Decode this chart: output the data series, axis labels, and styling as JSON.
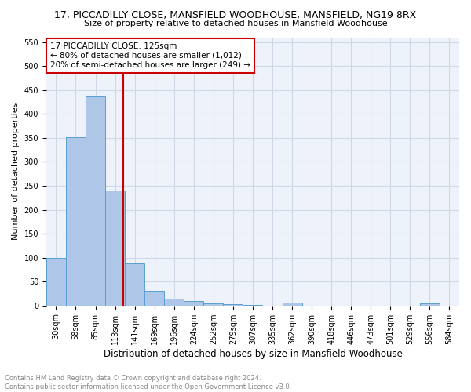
{
  "title": "17, PICCADILLY CLOSE, MANSFIELD WOODHOUSE, MANSFIELD, NG19 8RX",
  "subtitle": "Size of property relative to detached houses in Mansfield Woodhouse",
  "xlabel": "Distribution of detached houses by size in Mansfield Woodhouse",
  "ylabel": "Number of detached properties",
  "footnote": "Contains HM Land Registry data © Crown copyright and database right 2024.\nContains public sector information licensed under the Open Government Licence v3.0.",
  "bar_labels": [
    "30sqm",
    "58sqm",
    "85sqm",
    "113sqm",
    "141sqm",
    "169sqm",
    "196sqm",
    "224sqm",
    "252sqm",
    "279sqm",
    "307sqm",
    "335sqm",
    "362sqm",
    "390sqm",
    "418sqm",
    "446sqm",
    "473sqm",
    "501sqm",
    "529sqm",
    "556sqm",
    "584sqm"
  ],
  "bar_values": [
    100,
    352,
    436,
    240,
    88,
    30,
    15,
    10,
    5,
    3,
    2,
    0,
    6,
    0,
    0,
    0,
    0,
    0,
    0,
    5,
    0
  ],
  "bar_color": "#aec6e8",
  "bar_edge_color": "#5a9fd4",
  "ylim": [
    0,
    560
  ],
  "yticks": [
    0,
    50,
    100,
    150,
    200,
    250,
    300,
    350,
    400,
    450,
    500,
    550
  ],
  "annotation_title": "17 PICCADILLY CLOSE: 125sqm",
  "annotation_line1": "← 80% of detached houses are smaller (1,012)",
  "annotation_line2": "20% of semi-detached houses are larger (249) →",
  "annotation_box_color": "#ffffff",
  "annotation_box_edge": "#cc0000",
  "property_line_color": "#cc0000",
  "grid_color": "#d0d8e8",
  "background_color": "#edf2fb",
  "title_fontsize": 9,
  "subtitle_fontsize": 8,
  "xlabel_fontsize": 8.5,
  "ylabel_fontsize": 8,
  "tick_fontsize": 7,
  "ann_fontsize": 7.5,
  "footnote_fontsize": 6
}
